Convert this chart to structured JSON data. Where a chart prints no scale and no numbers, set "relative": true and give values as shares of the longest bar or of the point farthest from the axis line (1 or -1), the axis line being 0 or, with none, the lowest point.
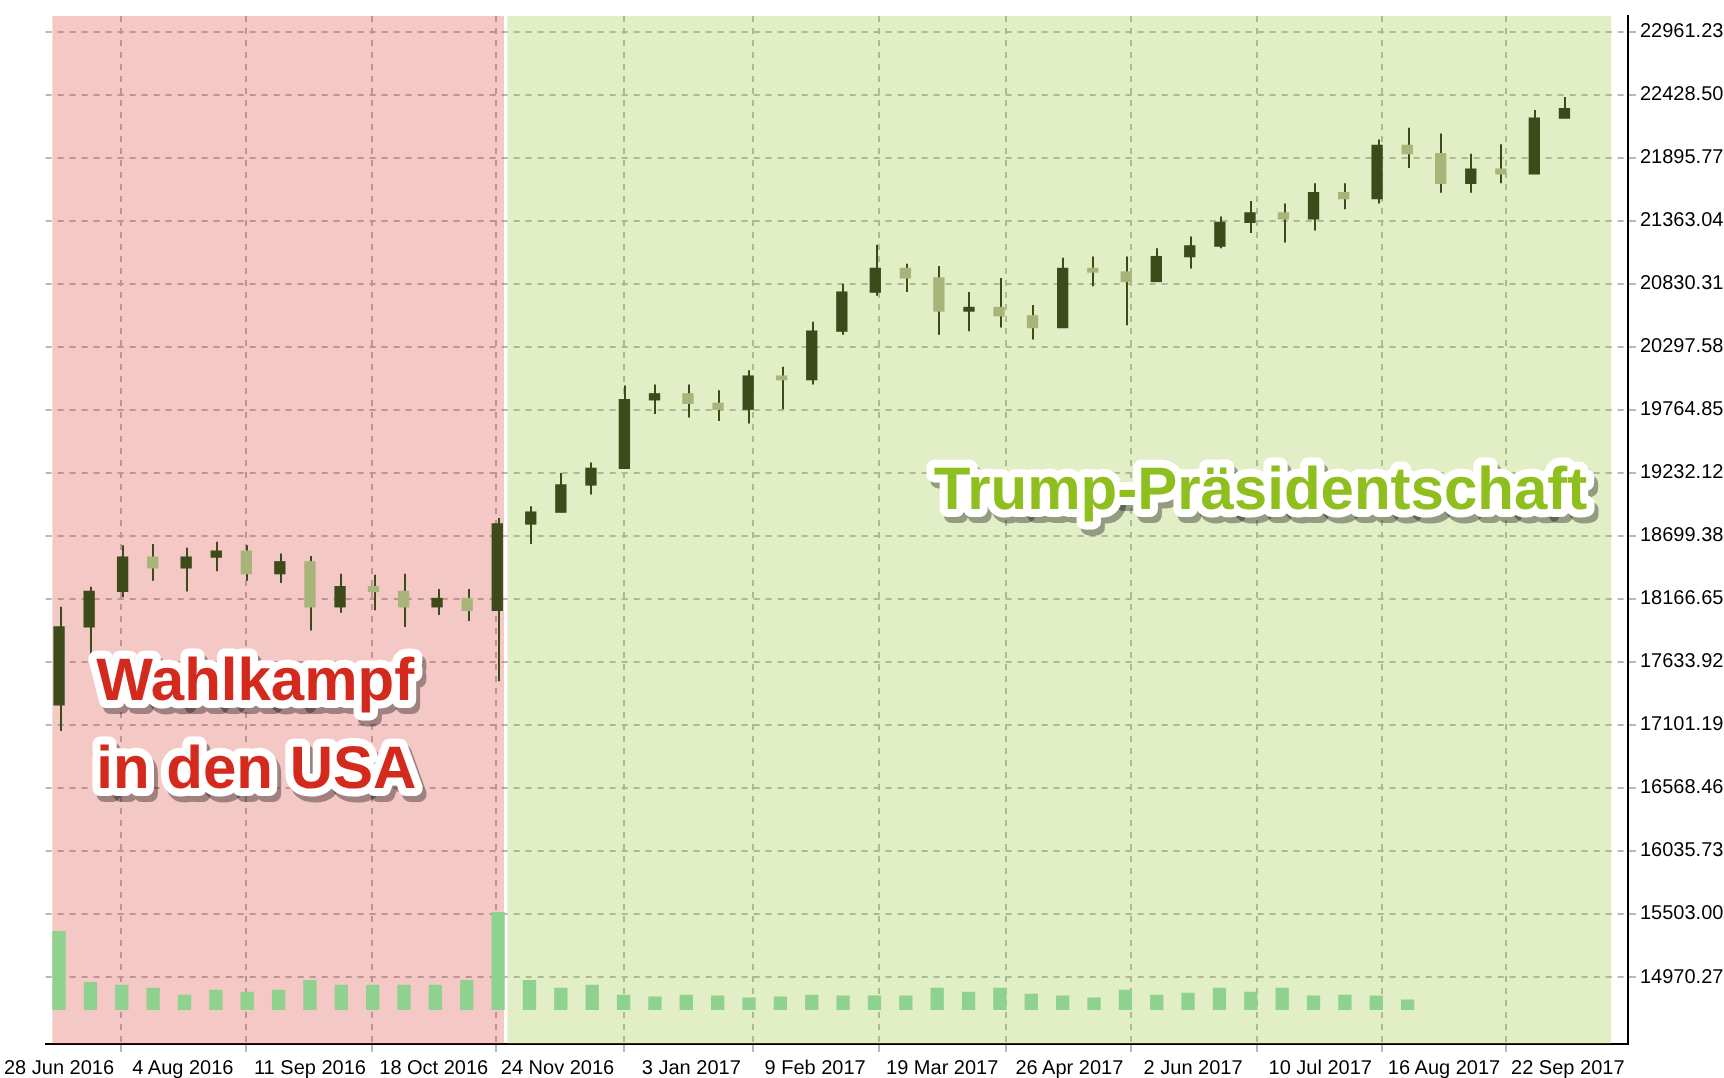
{
  "chart_data": [
    {
      "type": "candlestick",
      "color": "#3d4a1a",
      "colors": [
        "#3d4a1a",
        "#3d4a1a",
        "#3d4a1a",
        "#a9b47a",
        "#3d4a1a",
        "#3d4a1a",
        "#a9b47a",
        "#3d4a1a",
        "#a9b47a",
        "#3d4a1a",
        "#a9b47a",
        "#a9b47a",
        "#3d4a1a",
        "#a9b47a",
        "#3d4a1a",
        "#3d4a1a",
        "#3d4a1a",
        "#3d4a1a",
        "#3d4a1a",
        "#3d4a1a",
        "#a9b47a",
        "#a9b47a",
        "#3d4a1a",
        "#a9b47a",
        "#3d4a1a",
        "#3d4a1a",
        "#3d4a1a",
        "#a9b47a",
        "#a9b47a",
        "#3d4a1a",
        "#a9b47a",
        "#a9b47a",
        "#3d4a1a",
        "#a9b47a",
        "#a9b47a",
        "#3d4a1a",
        "#3d4a1a",
        "#3d4a1a",
        "#3d4a1a",
        "#a9b47a",
        "#3d4a1a",
        "#a9b47a",
        "#3d4a1a",
        "#a9b47a",
        "#a9b47a",
        "#3d4a1a",
        "#a9b47a",
        "#3d4a1a",
        "#3d4a1a"
      ],
      "x": [
        "2016-06-28",
        "2016-07-07",
        "2016-07-17",
        "2016-07-26",
        "2016-08-05",
        "2016-08-14",
        "2016-08-23",
        "2016-09-02",
        "2016-09-11",
        "2016-09-20",
        "2016-09-30",
        "2016-10-09",
        "2016-10-19",
        "2016-10-28",
        "2016-11-06",
        "2016-11-16",
        "2016-11-25",
        "2016-12-04",
        "2016-12-14",
        "2016-12-23",
        "2017-01-02",
        "2017-01-11",
        "2017-01-20",
        "2017-01-30",
        "2017-02-08",
        "2017-02-17",
        "2017-02-27",
        "2017-03-08",
        "2017-03-18",
        "2017-03-27",
        "2017-04-05",
        "2017-04-15",
        "2017-04-24",
        "2017-05-03",
        "2017-05-13",
        "2017-05-22",
        "2017-06-01",
        "2017-06-10",
        "2017-06-19",
        "2017-06-29",
        "2017-07-08",
        "2017-07-17",
        "2017-07-27",
        "2017-08-05",
        "2017-08-15",
        "2017-08-24",
        "2017-09-02",
        "2017-09-12",
        "2017-09-21"
      ],
      "ohlc": [
        [
          17270,
          18100,
          17050,
          17930
        ],
        [
          17930,
          18270,
          17680,
          18230
        ],
        [
          18230,
          18620,
          18180,
          18520
        ],
        [
          18520,
          18630,
          18320,
          18430
        ],
        [
          18430,
          18600,
          18230,
          18520
        ],
        [
          18520,
          18650,
          18400,
          18570
        ],
        [
          18570,
          18620,
          18320,
          18380
        ],
        [
          18380,
          18550,
          18300,
          18480
        ],
        [
          18480,
          18530,
          17900,
          18100
        ],
        [
          18100,
          18380,
          18050,
          18270
        ],
        [
          18270,
          18370,
          18070,
          18230
        ],
        [
          18230,
          18380,
          17930,
          18100
        ],
        [
          18100,
          18250,
          18030,
          18170
        ],
        [
          18170,
          18250,
          17980,
          18070
        ],
        [
          18070,
          18850,
          17470,
          18800
        ],
        [
          18800,
          18950,
          18630,
          18900
        ],
        [
          18900,
          19230,
          18900,
          19130
        ],
        [
          19130,
          19320,
          19050,
          19270
        ],
        [
          19270,
          19970,
          19270,
          19850
        ],
        [
          19850,
          19980,
          19730,
          19900
        ],
        [
          19900,
          19980,
          19700,
          19820
        ],
        [
          19820,
          19930,
          19670,
          19770
        ],
        [
          19770,
          20100,
          19650,
          20050
        ],
        [
          20050,
          20130,
          19770,
          20020
        ],
        [
          20020,
          20510,
          19980,
          20430
        ],
        [
          20430,
          20830,
          20400,
          20760
        ],
        [
          20760,
          21160,
          20730,
          20960
        ],
        [
          20960,
          21000,
          20760,
          20880
        ],
        [
          20880,
          20980,
          20400,
          20600
        ],
        [
          20600,
          20760,
          20430,
          20630
        ],
        [
          20630,
          20880,
          20460,
          20560
        ],
        [
          20560,
          20650,
          20360,
          20460
        ],
        [
          20460,
          21050,
          20460,
          20960
        ],
        [
          20960,
          21060,
          20810,
          20930
        ],
        [
          20930,
          21060,
          20480,
          20850
        ],
        [
          20850,
          21130,
          20850,
          21060
        ],
        [
          21060,
          21230,
          20960,
          21150
        ],
        [
          21150,
          21400,
          21130,
          21350
        ],
        [
          21350,
          21530,
          21260,
          21430
        ],
        [
          21430,
          21510,
          21180,
          21380
        ],
        [
          21380,
          21680,
          21280,
          21600
        ],
        [
          21600,
          21680,
          21460,
          21550
        ],
        [
          21550,
          22050,
          21510,
          22000
        ],
        [
          22000,
          22150,
          21810,
          21930
        ],
        [
          21930,
          22100,
          21600,
          21680
        ],
        [
          21680,
          21930,
          21600,
          21800
        ],
        [
          21800,
          22010,
          21680,
          21760
        ],
        [
          21760,
          22300,
          21760,
          22230
        ],
        [
          22230,
          22410,
          22230,
          22310
        ]
      ],
      "xlim": [
        "2016-06-24",
        "2017-10-10"
      ],
      "xticks": [
        {
          "value": "2016-06-28",
          "label": "28 Jun 2016"
        },
        {
          "value": "2016-08-04",
          "label": "4 Aug 2016"
        },
        {
          "value": "2016-09-11",
          "label": "11 Sep 2016"
        },
        {
          "value": "2016-10-18",
          "label": "18 Oct 2016"
        },
        {
          "value": "2016-11-24",
          "label": "24 Nov 2016"
        },
        {
          "value": "2017-01-03",
          "label": "3 Jan 2017"
        },
        {
          "value": "2017-02-09",
          "label": "9 Feb 2017"
        },
        {
          "value": "2017-03-19",
          "label": "19 Mar 2017"
        },
        {
          "value": "2017-04-26",
          "label": "26 Apr 2017"
        },
        {
          "value": "2017-06-02",
          "label": "2 Jun 2017"
        },
        {
          "value": "2017-07-10",
          "label": "10 Jul 2017"
        },
        {
          "value": "2017-08-16",
          "label": "16 Aug 2017"
        },
        {
          "value": "2017-09-22",
          "label": "22 Sep 2017"
        }
      ],
      "ylim": [
        14404,
        23094
      ],
      "yticks": [
        14970.27,
        {
          "value": 15503,
          "label": "15503.00"
        },
        16035.73,
        16568.46,
        17101.19,
        17633.92,
        18166.65,
        18699.38,
        19232.12,
        19764.85,
        20297.58,
        20830.31,
        21363.04,
        21895.77,
        {
          "value": 22428.5,
          "label": "22428.50"
        },
        22961.23
      ],
      "grid": true,
      "bands": [
        {
          "axis": "x",
          "from": "2016-06-26",
          "to": "2016-11-08",
          "label": "Wahlkampf in den USA",
          "color": "#d42a1e"
        },
        {
          "axis": "x",
          "from": "2016-11-09",
          "to": "2017-10-05",
          "label": "Trump-Präsidentschaft",
          "color": "#8fbf1f"
        }
      ]
    },
    {
      "type": "bar",
      "color": "#8fd18f",
      "relative": true,
      "tick_labels": false,
      "categories": [
        null,
        null,
        null,
        null,
        null,
        null,
        null,
        null,
        null,
        null,
        null,
        null,
        null,
        null,
        null,
        null,
        null,
        null,
        null,
        null,
        null,
        null,
        null,
        null,
        null,
        null,
        null,
        null,
        null,
        null,
        null,
        null,
        null,
        null,
        null,
        null,
        null,
        null,
        null,
        null,
        null,
        null,
        null,
        null
      ],
      "values": [
        0.8,
        0.28,
        0.25,
        0.22,
        0.15,
        0.2,
        0.18,
        0.2,
        0.3,
        0.25,
        0.25,
        0.25,
        0.25,
        0.3,
        1,
        0.3,
        0.22,
        0.25,
        0.15,
        0.13,
        0.15,
        0.14,
        0.12,
        0.13,
        0.15,
        0.14,
        0.14,
        0.14,
        0.22,
        0.18,
        0.22,
        0.16,
        0.14,
        0.12,
        0.2,
        0.15,
        0.17,
        0.22,
        0.18,
        0.22,
        0.14,
        0.15,
        0.14,
        0.1
      ]
    }
  ]
}
